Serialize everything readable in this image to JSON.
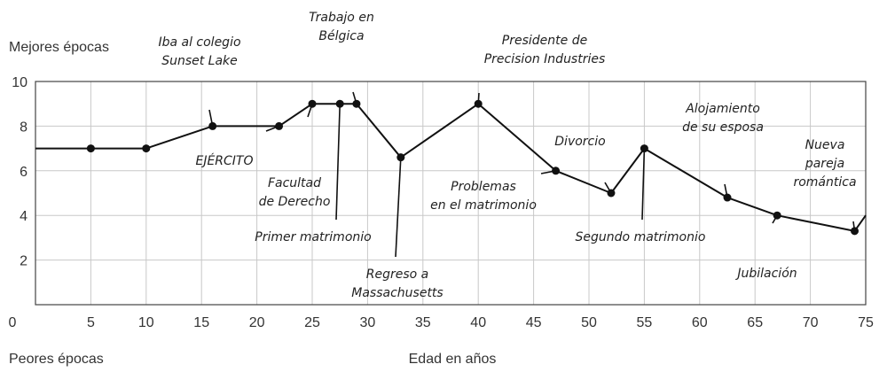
{
  "chart_data": {
    "type": "line",
    "top_label": "Mejores épocas",
    "bottom_label": "Peores épocas",
    "xlabel": "Edad en años",
    "ylabel": "",
    "xlim": [
      0,
      75
    ],
    "ylim": [
      0,
      10
    ],
    "x_ticks": [
      0,
      5,
      10,
      15,
      20,
      25,
      30,
      35,
      40,
      45,
      50,
      55,
      60,
      65,
      70,
      75
    ],
    "y_ticks": [
      2,
      4,
      6,
      8,
      10
    ],
    "grid": true,
    "series": [
      {
        "x": [
          0,
          5,
          10,
          16,
          22,
          25,
          27.5,
          29,
          33,
          40,
          47,
          52,
          55,
          62.5,
          67,
          74,
          75
        ],
        "y": [
          7,
          7,
          7,
          8,
          8,
          9,
          9,
          9,
          6.6,
          9,
          6,
          5,
          7,
          4.8,
          4,
          3.3,
          4
        ]
      }
    ],
    "markers": [
      {
        "x": 5,
        "y": 7
      },
      {
        "x": 10,
        "y": 7
      },
      {
        "x": 16,
        "y": 8
      },
      {
        "x": 22,
        "y": 8
      },
      {
        "x": 25,
        "y": 9
      },
      {
        "x": 27.5,
        "y": 9
      },
      {
        "x": 29,
        "y": 9
      },
      {
        "x": 33,
        "y": 6.6
      },
      {
        "x": 40,
        "y": 9
      },
      {
        "x": 47,
        "y": 6
      },
      {
        "x": 52,
        "y": 5
      },
      {
        "x": 55,
        "y": 7
      },
      {
        "x": 62.5,
        "y": 4.8
      },
      {
        "x": 67,
        "y": 4
      },
      {
        "x": 74,
        "y": 3.3
      }
    ],
    "annotations": [
      {
        "lines": [
          "Iba al colegio",
          "Sunset Lake"
        ],
        "x": 16,
        "y": 8
      },
      {
        "lines": [
          "EJÉRCITO"
        ],
        "x": 22,
        "y": 8
      },
      {
        "lines": [
          "Facultad",
          "de Derecho"
        ],
        "x": 25,
        "y": 9
      },
      {
        "lines": [
          "Primer matrimonio"
        ],
        "x": 27.5,
        "y": 9
      },
      {
        "lines": [
          "Trabajo en",
          "Bélgica"
        ],
        "x": 29,
        "y": 9
      },
      {
        "lines": [
          "Regreso a",
          "Massachusetts"
        ],
        "x": 33,
        "y": 6.6
      },
      {
        "lines": [
          "Presidente de",
          "Precision Industries"
        ],
        "x": 40,
        "y": 9
      },
      {
        "lines": [
          "Problemas",
          "en el matrimonio"
        ],
        "x": 47,
        "y": 6
      },
      {
        "lines": [
          "Divorcio"
        ],
        "x": 52,
        "y": 5
      },
      {
        "lines": [
          "Segundo matrimonio"
        ],
        "x": 55,
        "y": 7
      },
      {
        "lines": [
          "Alojamiento",
          "de su esposa"
        ],
        "x": 62.5,
        "y": 4.8
      },
      {
        "lines": [
          "Jubilación"
        ],
        "x": 67,
        "y": 4
      },
      {
        "lines": [
          "Nueva",
          "pareja",
          "romántica"
        ],
        "x": 74,
        "y": 3.3
      }
    ],
    "colors": {
      "line": "#111111",
      "grid": "#c8c8c8",
      "axis": "#444444"
    }
  }
}
